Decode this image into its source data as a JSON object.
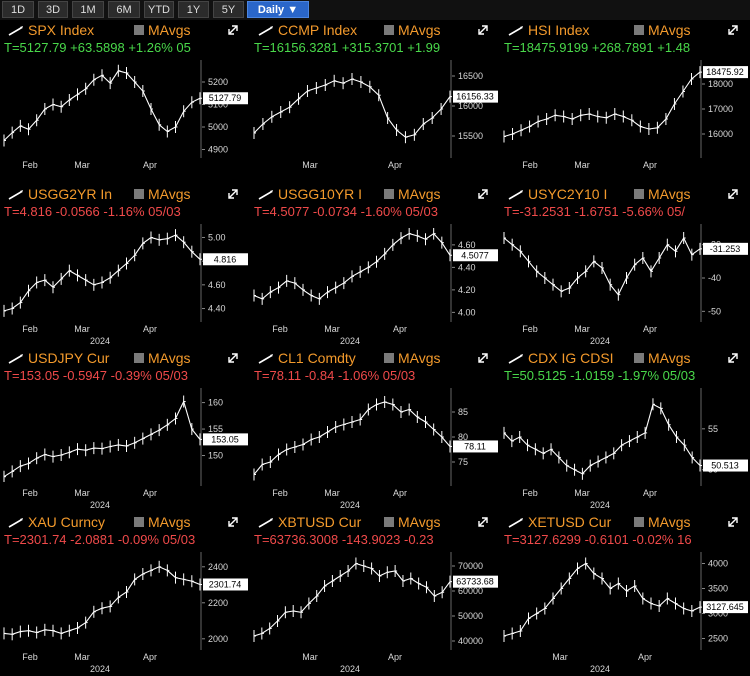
{
  "toolbar": {
    "buttons": [
      "1D",
      "3D",
      "1M",
      "6M",
      "YTD",
      "1Y",
      "5Y"
    ],
    "active": "Daily ▼"
  },
  "colors": {
    "ticker": "#f39a2c",
    "up": "#49d84a",
    "down": "#f04a4a",
    "active_tab": "#2a66c9"
  },
  "panels": [
    {
      "ticker": "SPX Index",
      "ma": "MAvgs",
      "quote": "T=5127.79 +63.5898 +1.26% 05",
      "dir": "up",
      "last": "5127.79",
      "yticks": [
        "5200",
        "5100",
        "5000",
        "4900"
      ],
      "xticks": [
        "Feb",
        "Mar",
        "Apr"
      ],
      "year": ""
    },
    {
      "ticker": "CCMP Index",
      "ma": "MAvgs",
      "quote": "T=16156.3281 +315.3701 +1.99",
      "dir": "up",
      "last": "16156.33",
      "yticks": [
        "16500",
        "16000",
        "15500"
      ],
      "xticks": [
        "Mar",
        "Apr"
      ],
      "year": ""
    },
    {
      "ticker": "HSI Index",
      "ma": "MAvgs",
      "quote": "T=18475.9199 +268.7891 +1.48",
      "dir": "up",
      "last": "18475.92",
      "yticks": [
        "18000",
        "17000",
        "16000"
      ],
      "xticks": [
        "Feb",
        "Mar",
        "Apr"
      ],
      "year": ""
    },
    {
      "ticker": "USGG2YR In",
      "ma": "MAvgs",
      "quote": "T=4.816 -0.0566 -1.16% 05/03",
      "dir": "down",
      "last": "4.816",
      "yticks": [
        "5.00",
        "4.80",
        "4.60",
        "4.40"
      ],
      "xticks": [
        "Feb",
        "Mar",
        "Apr"
      ],
      "year": "2024"
    },
    {
      "ticker": "USGG10YR I",
      "ma": "MAvgs",
      "quote": "T=4.5077 -0.0734 -1.60% 05/03",
      "dir": "down",
      "last": "4.5077",
      "yticks": [
        "4.60",
        "4.40",
        "4.20",
        "4.00"
      ],
      "xticks": [
        "Feb",
        "Mar",
        "Apr"
      ],
      "year": "2024"
    },
    {
      "ticker": "USYC2Y10 I",
      "ma": "MAvgs",
      "quote": "T=-31.2531 -1.6751 -5.66% 05/",
      "dir": "down",
      "last": "-31.253",
      "yticks": [
        "-30",
        "-40",
        "-50"
      ],
      "xticks": [
        "Feb",
        "Mar",
        "Apr"
      ],
      "year": "2024"
    },
    {
      "ticker": "USDJPY Cur",
      "ma": "MAvgs",
      "quote": "T=153.05 -0.5947 -0.39% 05/03",
      "dir": "down",
      "last": "153.05",
      "yticks": [
        "160",
        "155",
        "150"
      ],
      "xticks": [
        "Feb",
        "Mar",
        "Apr"
      ],
      "year": "2024"
    },
    {
      "ticker": "CL1 Comdty",
      "ma": "MAvgs",
      "quote": "T=78.11 -0.84 -1.06% 05/03",
      "dir": "down",
      "last": "78.11",
      "yticks": [
        "85",
        "80",
        "75"
      ],
      "xticks": [
        "Feb",
        "Mar",
        "Apr"
      ],
      "year": "2024"
    },
    {
      "ticker": "CDX IG CDSI",
      "ma": "MAvgs",
      "quote": "T=50.5125 -1.0159 -1.97% 05/03",
      "dir": "up",
      "last": "50.513",
      "yticks": [
        "55",
        "50"
      ],
      "xticks": [
        "Feb",
        "Mar",
        "Apr"
      ],
      "year": "2024"
    },
    {
      "ticker": "XAU Curncy",
      "ma": "MAvgs",
      "quote": "T=2301.74 -2.0881 -0.09% 05/03",
      "dir": "down",
      "last": "2301.74",
      "yticks": [
        "2400",
        "2200",
        "2000"
      ],
      "xticks": [
        "Feb",
        "Mar",
        "Apr"
      ],
      "year": "2024"
    },
    {
      "ticker": "XBTUSD Cur",
      "ma": "MAvgs",
      "quote": "T=63736.3008 -143.9023 -0.23",
      "dir": "down",
      "last": "63733.68",
      "yticks": [
        "70000",
        "60000",
        "50000",
        "40000"
      ],
      "xticks": [
        "Mar",
        "Apr"
      ],
      "year": "2024"
    },
    {
      "ticker": "XETUSD Cur",
      "ma": "MAvgs",
      "quote": "T=3127.6299 -0.6101 -0.02% 16",
      "dir": "down",
      "last": "3127.645",
      "yticks": [
        "4000",
        "3500",
        "3000",
        "2500"
      ],
      "xticks": [
        "Mar",
        "Apr"
      ],
      "year": "2024"
    }
  ],
  "chart_data": [
    {
      "type": "line",
      "series": [
        {
          "values": [
            4940,
            4975,
            5005,
            4990,
            5030,
            5080,
            5100,
            5090,
            5120,
            5145,
            5170,
            5210,
            5230,
            5195,
            5250,
            5240,
            5200,
            5160,
            5080,
            5010,
            4980,
            5000,
            5070,
            5110,
            5127.79
          ]
        }
      ],
      "ylim": [
        4880,
        5280
      ]
    },
    {
      "type": "line",
      "series": [
        {
          "values": [
            15550,
            15700,
            15820,
            15900,
            15980,
            16120,
            16250,
            16300,
            16350,
            16420,
            16380,
            16450,
            16400,
            16320,
            16180,
            15800,
            15600,
            15480,
            15520,
            15700,
            15800,
            15950,
            16156.33
          ]
        }
      ],
      "ylim": [
        15200,
        16700
      ]
    },
    {
      "type": "line",
      "series": [
        {
          "values": [
            15900,
            16000,
            16150,
            16300,
            16500,
            16600,
            16750,
            16700,
            16600,
            16750,
            16800,
            16700,
            16650,
            16800,
            16700,
            16550,
            16300,
            16200,
            16250,
            16600,
            17200,
            17700,
            18200,
            18475.92
          ]
        }
      ],
      "ylim": [
        15200,
        18800
      ]
    },
    {
      "type": "line",
      "series": [
        {
          "values": [
            4.38,
            4.4,
            4.45,
            4.55,
            4.62,
            4.64,
            4.58,
            4.65,
            4.72,
            4.68,
            4.64,
            4.6,
            4.62,
            4.66,
            4.72,
            4.78,
            4.85,
            4.95,
            5.0,
            4.98,
            4.99,
            5.02,
            4.96,
            4.88,
            4.816
          ]
        }
      ],
      "ylim": [
        4.32,
        5.08
      ]
    },
    {
      "type": "line",
      "series": [
        {
          "values": [
            4.15,
            4.12,
            4.18,
            4.22,
            4.28,
            4.26,
            4.2,
            4.15,
            4.12,
            4.18,
            4.22,
            4.26,
            4.32,
            4.36,
            4.4,
            4.45,
            4.52,
            4.6,
            4.66,
            4.7,
            4.68,
            4.65,
            4.7,
            4.62,
            4.5077
          ]
        }
      ],
      "ylim": [
        3.95,
        4.75
      ]
    },
    {
      "type": "line",
      "series": [
        {
          "values": [
            -28,
            -30,
            -32,
            -35,
            -38,
            -40,
            -42,
            -44,
            -43,
            -40,
            -38,
            -35,
            -37,
            -42,
            -45,
            -40,
            -36,
            -34,
            -38,
            -34,
            -30,
            -32,
            -28,
            -33,
            -31.253
          ]
        }
      ],
      "ylim": [
        -52,
        -25
      ]
    },
    {
      "type": "line",
      "series": [
        {
          "values": [
            146,
            147,
            148,
            148.5,
            149.5,
            150.2,
            149.8,
            150.1,
            150.6,
            151.2,
            151.0,
            151.4,
            151.3,
            151.7,
            152.0,
            151.8,
            152.4,
            153.2,
            154.0,
            154.8,
            155.8,
            157.0,
            160.2,
            155.0,
            153.05
          ]
        }
      ],
      "ylim": [
        145,
        162
      ]
    },
    {
      "type": "line",
      "series": [
        {
          "values": [
            72.5,
            74.5,
            75.0,
            76.5,
            77.5,
            78.0,
            78.5,
            79.5,
            80.0,
            81.0,
            82.0,
            82.5,
            83.0,
            83.5,
            85.5,
            86.5,
            87.0,
            86.5,
            85.0,
            85.5,
            84.0,
            83.0,
            81.5,
            80.0,
            78.11
          ]
        }
      ],
      "ylim": [
        71,
        89
      ]
    },
    {
      "type": "line",
      "series": [
        {
          "values": [
            54.5,
            53.5,
            54.0,
            53.0,
            52.5,
            52.0,
            52.5,
            51.5,
            50.5,
            50.0,
            49.5,
            50.5,
            51.0,
            51.5,
            52.0,
            53.0,
            53.5,
            54.0,
            54.5,
            58.0,
            57.5,
            55.5,
            54.0,
            53.0,
            51.5,
            50.513
          ]
        }
      ],
      "ylim": [
        48.5,
        59.5
      ]
    },
    {
      "type": "line",
      "series": [
        {
          "values": [
            2030,
            2025,
            2040,
            2045,
            2035,
            2050,
            2045,
            2030,
            2045,
            2060,
            2090,
            2150,
            2170,
            2180,
            2230,
            2260,
            2330,
            2360,
            2380,
            2400,
            2380,
            2340,
            2330,
            2320,
            2301.74
          ]
        }
      ],
      "ylim": [
        1960,
        2460
      ]
    },
    {
      "type": "line",
      "series": [
        {
          "values": [
            42000,
            43000,
            45000,
            48000,
            51500,
            52000,
            51500,
            55000,
            58000,
            62000,
            64000,
            66000,
            68000,
            71000,
            70000,
            69000,
            66000,
            67500,
            68000,
            64000,
            65000,
            63000,
            61500,
            58000,
            59500,
            63733.68
          ]
        }
      ],
      "ylim": [
        38000,
        74000
      ]
    },
    {
      "type": "line",
      "series": [
        {
          "values": [
            2550,
            2600,
            2650,
            2900,
            3000,
            3100,
            3300,
            3500,
            3700,
            3900,
            4000,
            3800,
            3700,
            3500,
            3600,
            3450,
            3550,
            3300,
            3200,
            3150,
            3300,
            3200,
            3100,
            3050,
            3127.645
          ]
        }
      ],
      "ylim": [
        2350,
        4150
      ]
    }
  ]
}
